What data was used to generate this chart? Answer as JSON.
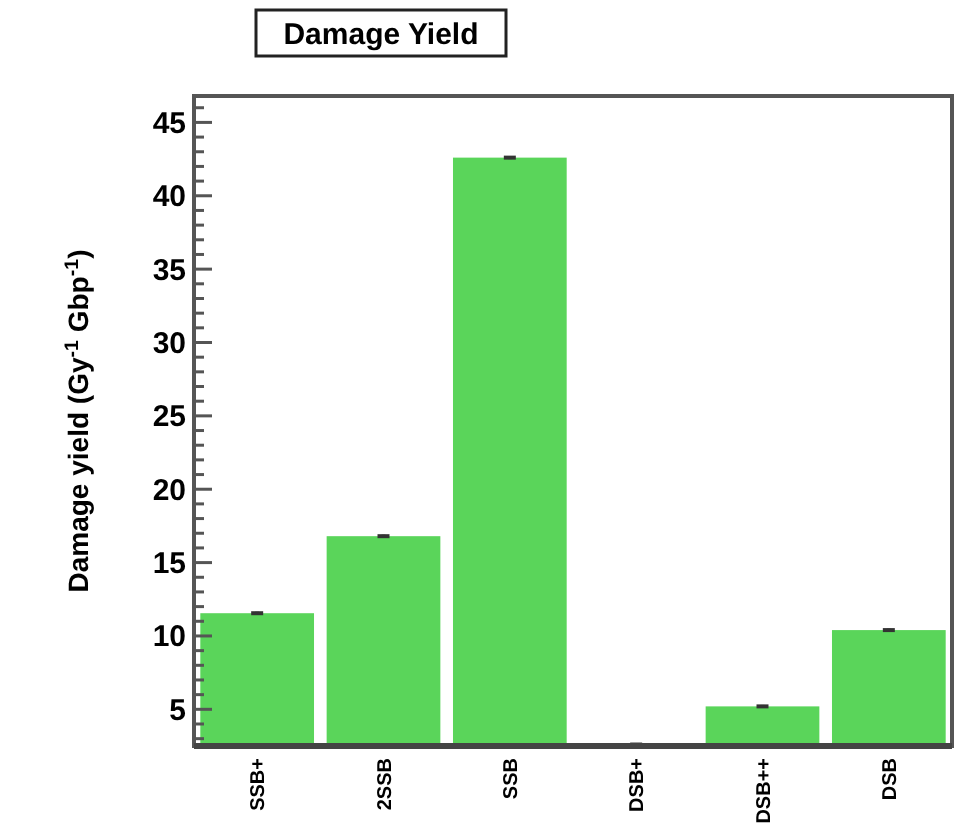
{
  "chart_data": {
    "type": "bar",
    "title": "Damage Yield",
    "ylabel": "Damage yield (Gy$^{-1}$ Gbp$^{-1}$)",
    "categories": [
      "SSB+",
      "2SSB",
      "SSB",
      "DSB+",
      "DSB++",
      "DSB"
    ],
    "values": [
      11.55,
      16.8,
      42.6,
      2.6,
      5.2,
      10.4
    ],
    "errors": [
      0.1,
      0.1,
      0.1,
      0.1,
      0.1,
      0.1
    ],
    "color": "#5ad55a",
    "ylim": [
      2.5,
      46.8
    ],
    "yticks": [
      {
        "value": 3,
        "label": null
      },
      {
        "value": 4,
        "label": null
      },
      5,
      {
        "value": 6,
        "label": null
      },
      {
        "value": 7,
        "label": null
      },
      {
        "value": 8,
        "label": null
      },
      {
        "value": 9,
        "label": null
      },
      10,
      {
        "value": 11,
        "label": null
      },
      {
        "value": 12,
        "label": null
      },
      {
        "value": 13,
        "label": null
      },
      {
        "value": 14,
        "label": null
      },
      15,
      {
        "value": 16,
        "label": null
      },
      {
        "value": 17,
        "label": null
      },
      {
        "value": 18,
        "label": null
      },
      {
        "value": 19,
        "label": null
      },
      20,
      {
        "value": 21,
        "label": null
      },
      {
        "value": 22,
        "label": null
      },
      {
        "value": 23,
        "label": null
      },
      {
        "value": 24,
        "label": null
      },
      25,
      {
        "value": 26,
        "label": null
      },
      {
        "value": 27,
        "label": null
      },
      {
        "value": 28,
        "label": null
      },
      {
        "value": 29,
        "label": null
      },
      30,
      {
        "value": 31,
        "label": null
      },
      {
        "value": 32,
        "label": null
      },
      {
        "value": 33,
        "label": null
      },
      {
        "value": 34,
        "label": null
      },
      35,
      {
        "value": 36,
        "label": null
      },
      {
        "value": 37,
        "label": null
      },
      {
        "value": 38,
        "label": null
      },
      {
        "value": 39,
        "label": null
      },
      40,
      {
        "value": 41,
        "label": null
      },
      {
        "value": 42,
        "label": null
      },
      {
        "value": 43,
        "label": null
      },
      {
        "value": 44,
        "label": null
      },
      45,
      {
        "value": 46,
        "label": null
      }
    ]
  }
}
